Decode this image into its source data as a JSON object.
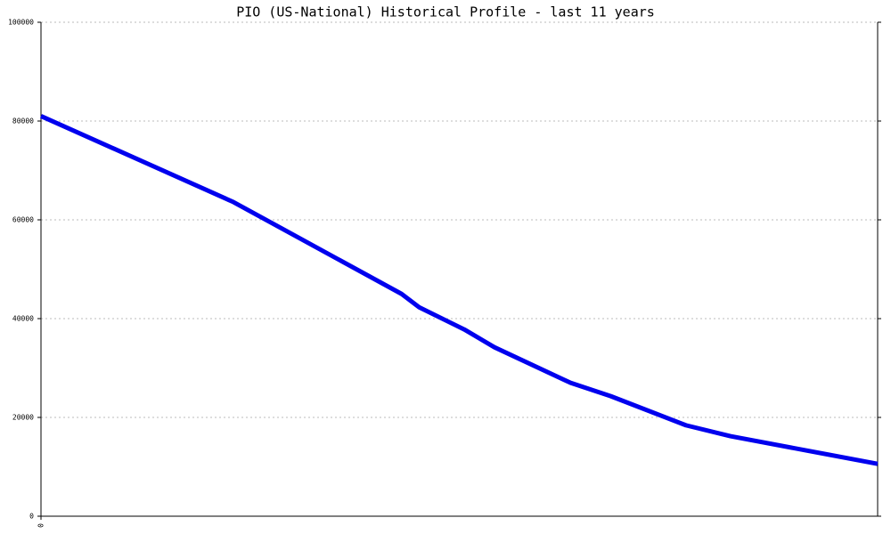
{
  "chart_data": {
    "type": "line",
    "title": "PIO (US-National) Historical Profile - last 11 years",
    "x": [
      0,
      23,
      43.1,
      45.2,
      50.6,
      54.2,
      63.3,
      68.1,
      77.1,
      82.4,
      100
    ],
    "series": [
      {
        "color": "#0000ee",
        "values": [
          81000,
          63600,
          45000,
          42300,
          37800,
          34200,
          27000,
          24300,
          18400,
          16200,
          10600
        ]
      }
    ],
    "xlim": [
      0,
      100
    ],
    "xticks": [
      0
    ],
    "ylim": [
      0,
      100000
    ],
    "yticks": [
      0,
      20000,
      40000,
      60000,
      80000,
      100000
    ],
    "grid": true
  }
}
